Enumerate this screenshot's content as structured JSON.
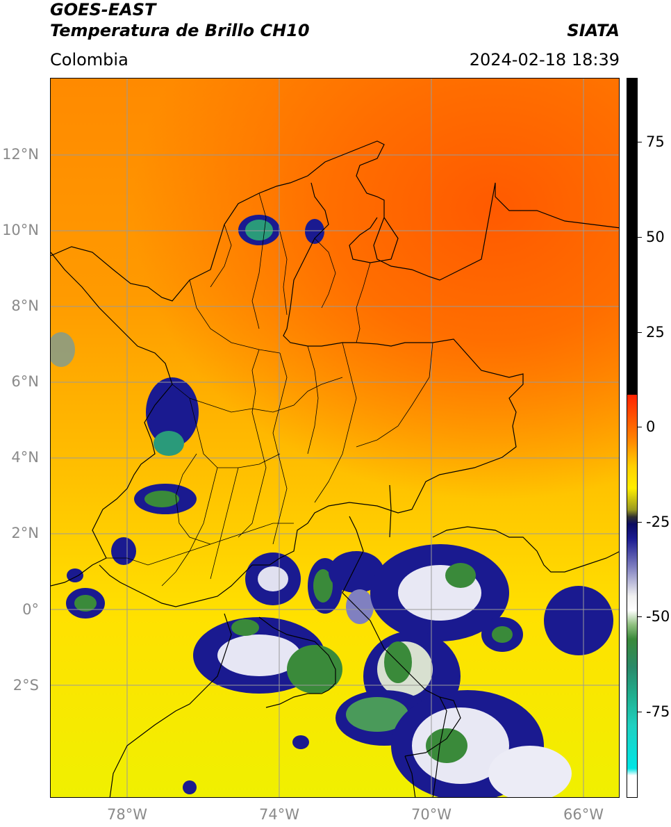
{
  "header": {
    "title_line1": "GOES-EAST",
    "title_line2": "Temperatura de Brillo CH10",
    "org": "SIATA",
    "region": "Colombia",
    "datetime": "2024-02-18 18:39"
  },
  "axes": {
    "lat_labels": [
      "12°N",
      "10°N",
      "8°N",
      "6°N",
      "4°N",
      "2°N",
      "0°",
      "2°S"
    ],
    "lon_labels": [
      "78°W",
      "74°W",
      "70°W",
      "66°W"
    ]
  },
  "colorbar": {
    "labels": [
      "75",
      "50",
      "25",
      "0",
      "-25",
      "-50",
      "-75"
    ]
  },
  "colors": {
    "warm_orange": "#ff6e00",
    "yellow": "#ffe100",
    "cold_navy": "#1a1a90",
    "cold_green": "#2a8a6a",
    "border_line": "#000000",
    "grid_line": "#9a9a9a"
  }
}
